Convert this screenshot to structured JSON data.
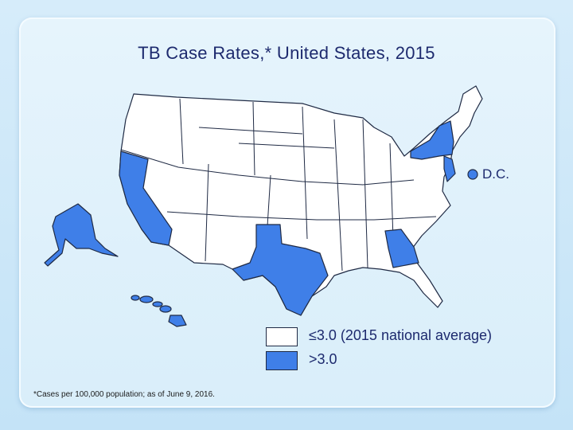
{
  "title": "TB Case Rates,* United States, 2015",
  "map_labels": {
    "dc": "D.C."
  },
  "legend": {
    "items": [
      {
        "label": "≤3.0 (2015 national average)",
        "color": "#ffffff",
        "category": "low"
      },
      {
        "label": ">3.0",
        "color": "#3f7fe8",
        "category": "high"
      }
    ]
  },
  "highlighted_states": [
    "California",
    "Texas",
    "Georgia",
    "New York",
    "New Jersey",
    "Alaska",
    "Hawaii",
    "District of Columbia"
  ],
  "footnote": "*Cases per 100,000 population; as of June 9, 2016.",
  "colors": {
    "high": "#3f7fe8",
    "low": "#ffffff",
    "title": "#1d2a6e",
    "border": "#1f2a44"
  }
}
